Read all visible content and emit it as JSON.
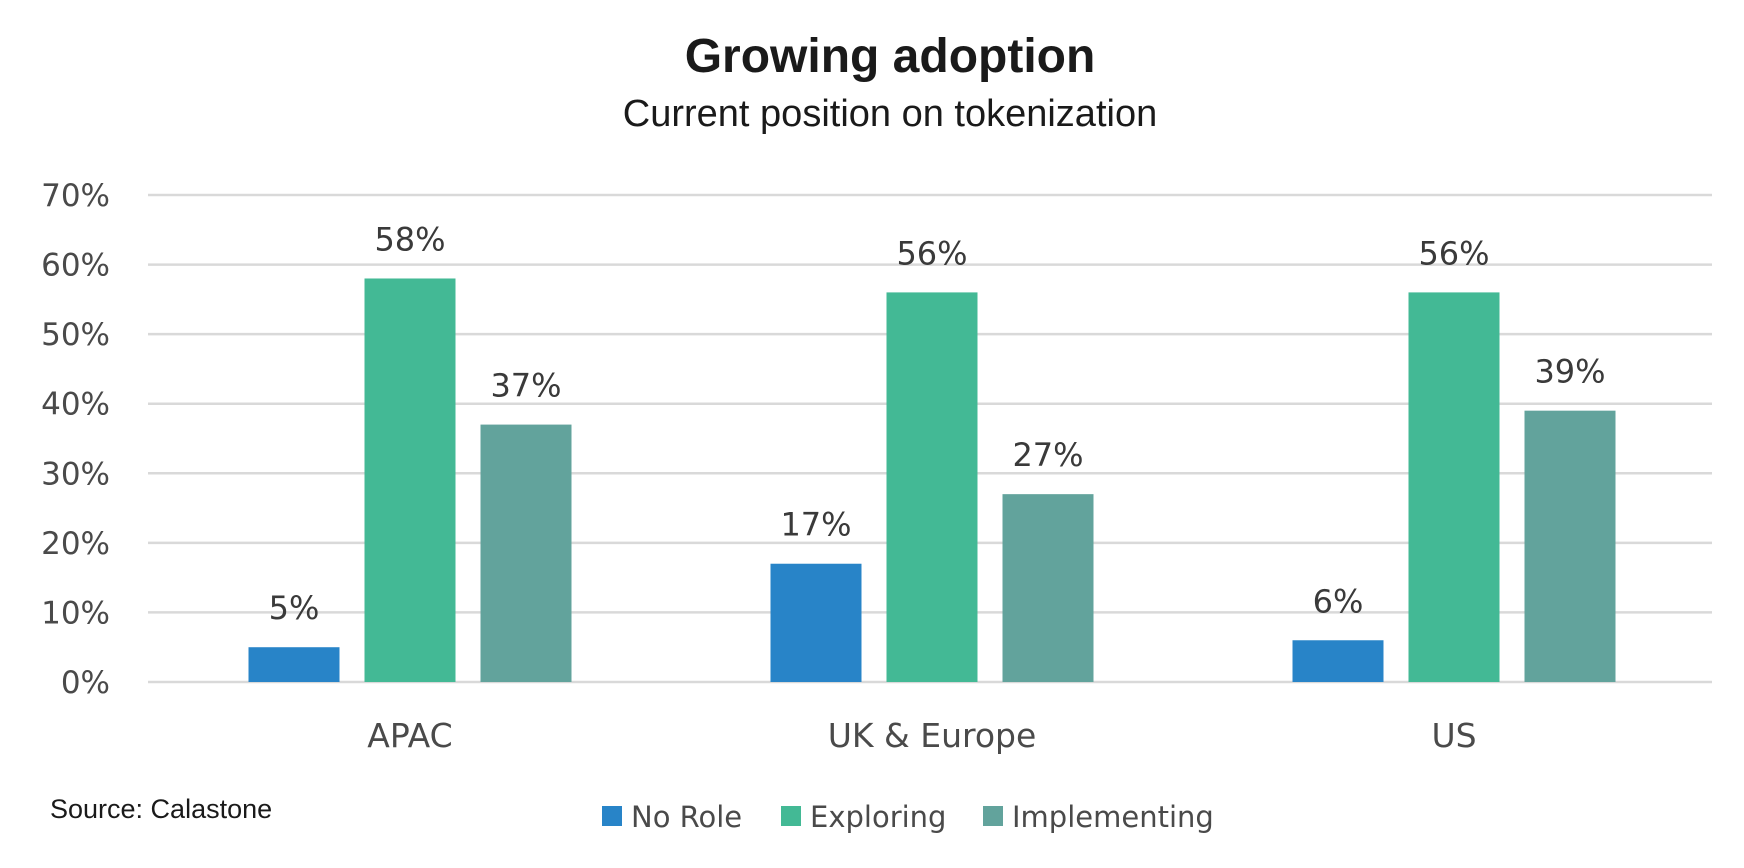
{
  "chart_data": {
    "type": "bar",
    "title": "Growing adoption",
    "subtitle": "Current position on tokenization",
    "categories": [
      "APAC",
      "UK & Europe",
      "US"
    ],
    "series": [
      {
        "name": "No Role",
        "color": "#2884c8",
        "values": [
          5,
          17,
          6
        ],
        "labels": [
          "5%",
          "17%",
          "6%"
        ]
      },
      {
        "name": "Exploring",
        "color": "#43b995",
        "values": [
          58,
          56,
          56
        ],
        "labels": [
          "58%",
          "56%",
          "56%"
        ]
      },
      {
        "name": "Implementing",
        "color": "#62a39c",
        "values": [
          37,
          27,
          39
        ],
        "labels": [
          "37%",
          "27%",
          "39%"
        ]
      }
    ],
    "ylim": [
      0,
      70
    ],
    "yticks": [
      0,
      10,
      20,
      30,
      40,
      50,
      60,
      70
    ],
    "ytick_labels": [
      "0%",
      "10%",
      "20%",
      "30%",
      "40%",
      "50%",
      "60%",
      "70%"
    ],
    "grid": true,
    "legend_position": "bottom",
    "source": "Source: Calastone"
  }
}
